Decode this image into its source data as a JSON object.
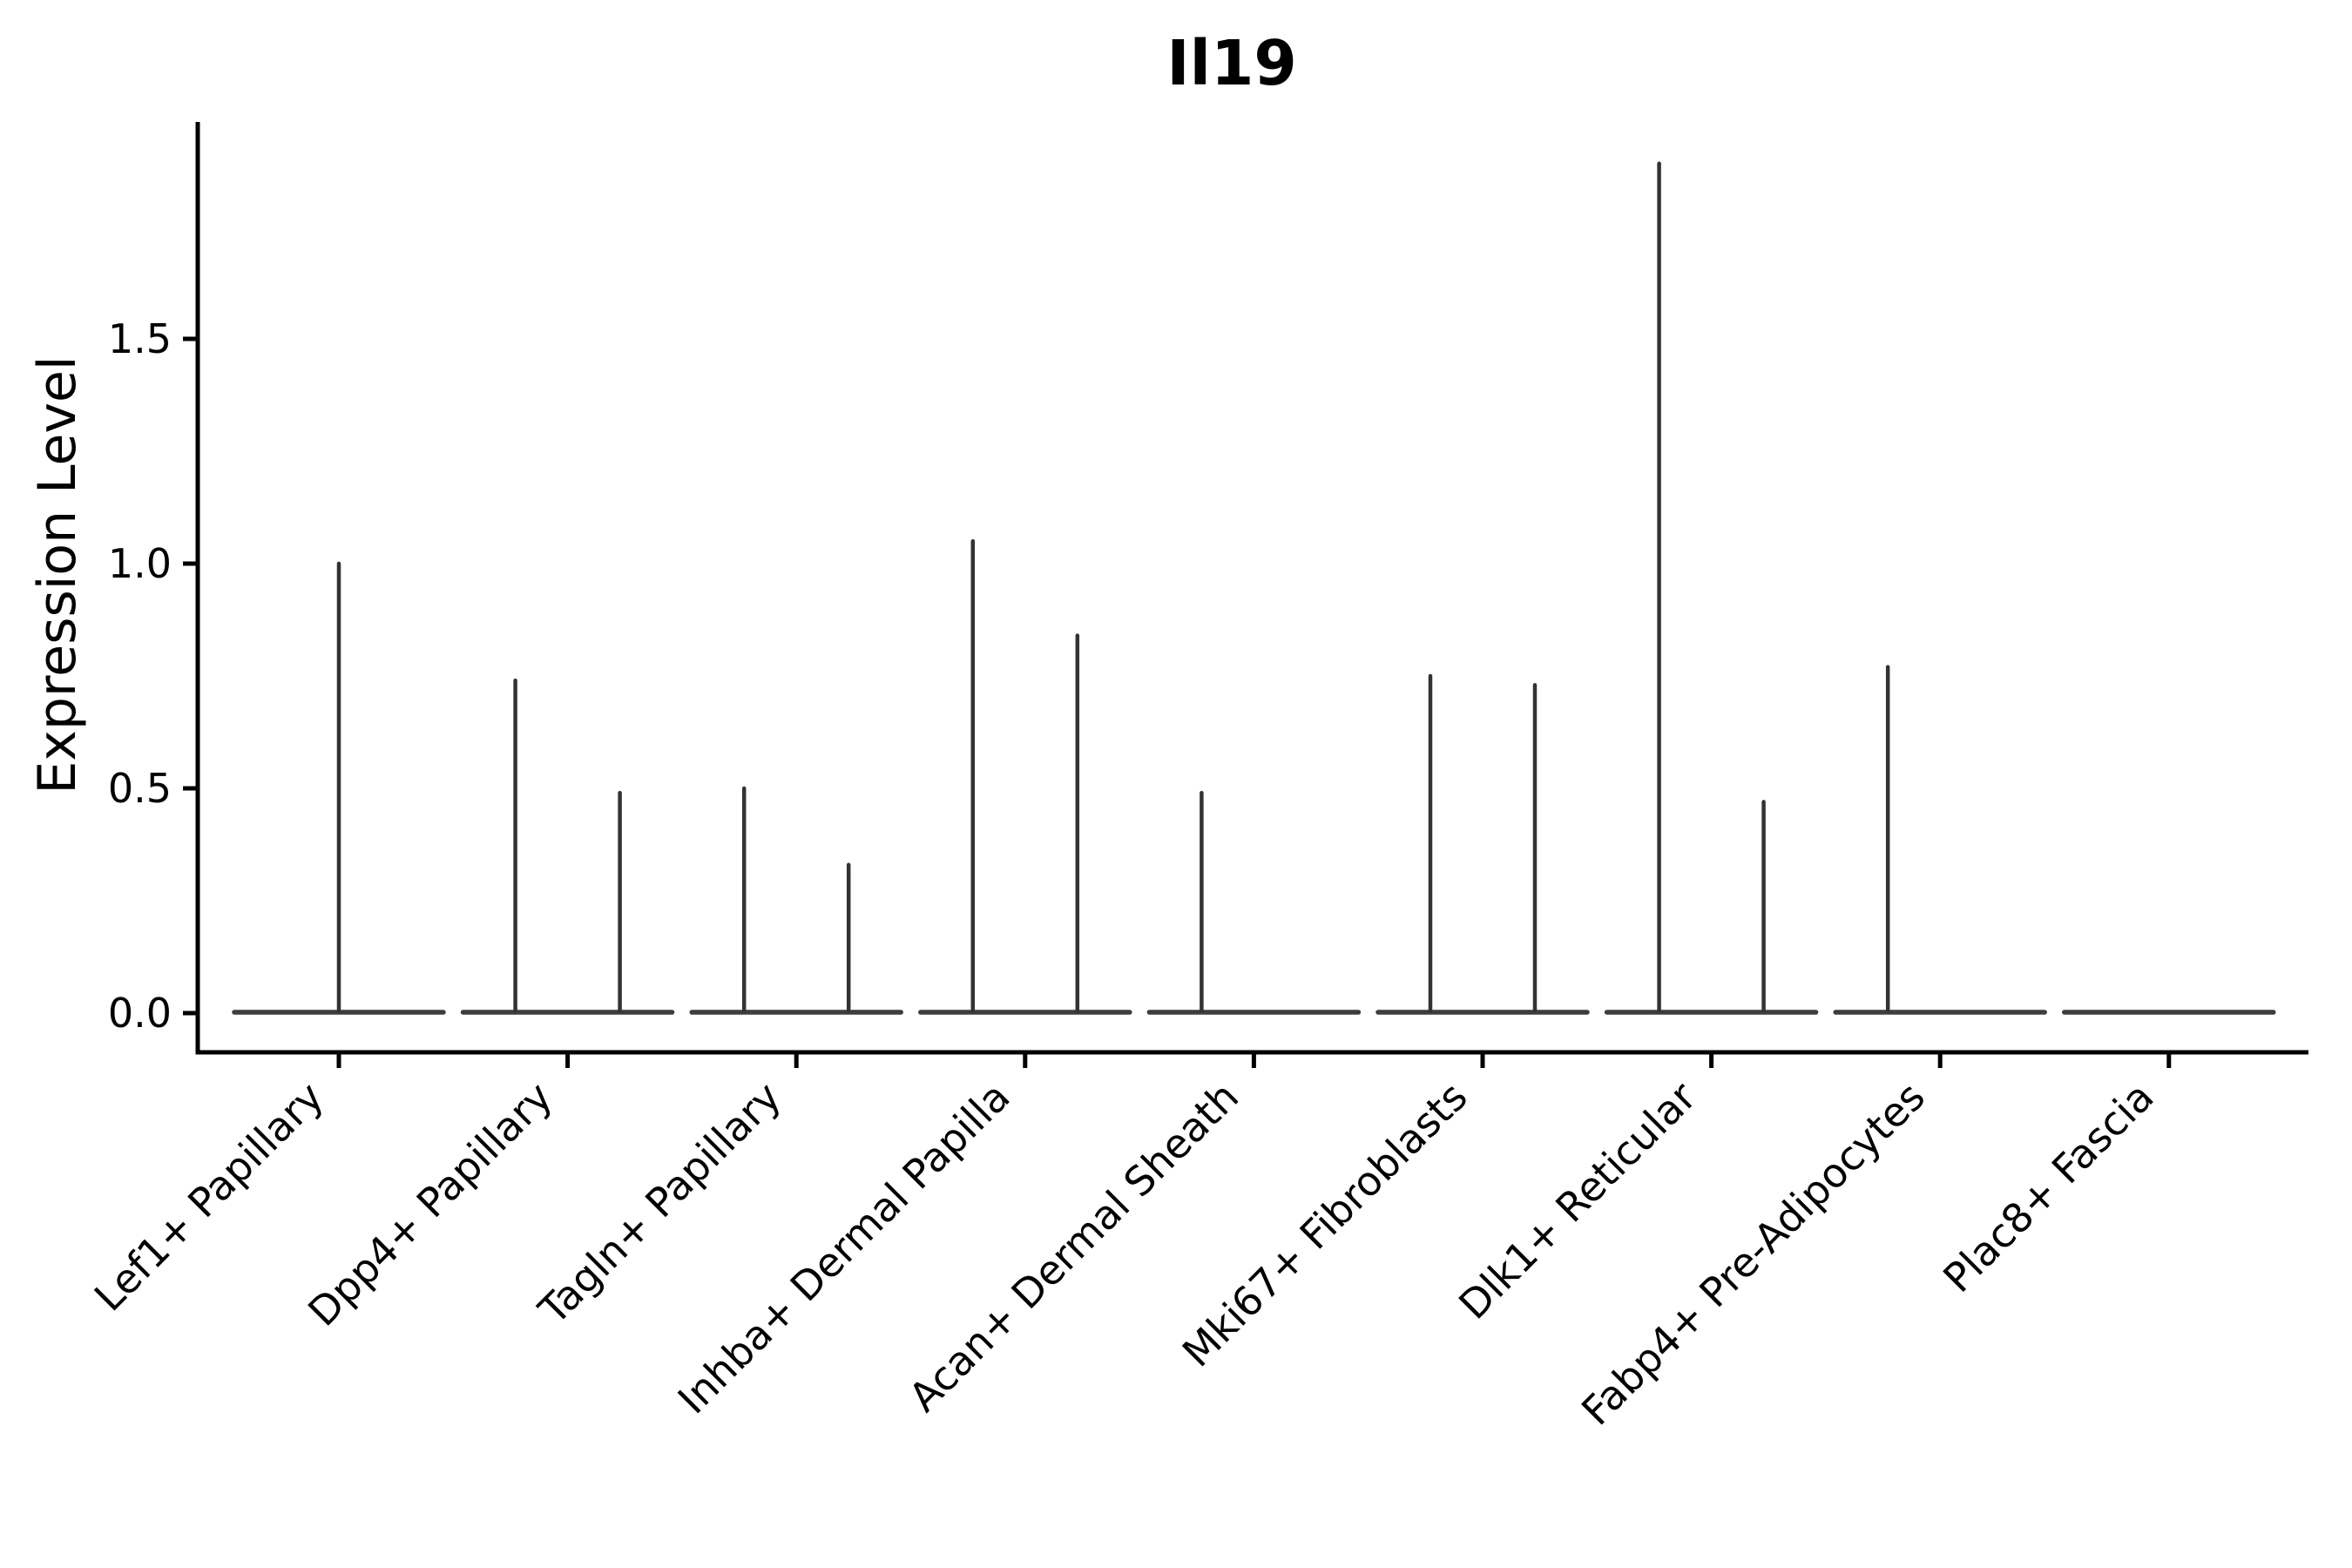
{
  "figure": {
    "background": "#ffffff"
  },
  "chart_data": {
    "type": "violin",
    "title": "Il19",
    "xlabel": "",
    "ylabel": "Expression Level",
    "ytick_labels": [
      "0.0",
      "0.5",
      "1.0",
      "1.5"
    ],
    "ytick_values": [
      0.0,
      0.5,
      1.0,
      1.5
    ],
    "ylim": [
      -0.08,
      1.97
    ],
    "grid": false,
    "legend": "none",
    "categories": [
      "Lef1+ Papillary",
      "Dpp4+ Papillary",
      "Tagln+ Papillary",
      "Inhba+ Dermal Papilla",
      "Acan+ Dermal Sheath",
      "Mki67+ Fibroblasts",
      "Dlk1+ Reticular",
      "Fabp4+ Pre-Adipocytes",
      "Plac8+ Fascia"
    ],
    "violins": [
      {
        "category": "Lef1+ Papillary",
        "spikes": [
          {
            "slot": "center",
            "peak": 1.0
          }
        ]
      },
      {
        "category": "Dpp4+ Papillary",
        "spikes": [
          {
            "slot": "left",
            "peak": 0.74
          },
          {
            "slot": "right",
            "peak": 0.49
          }
        ]
      },
      {
        "category": "Tagln+ Papillary",
        "spikes": [
          {
            "slot": "left",
            "peak": 0.5
          },
          {
            "slot": "right",
            "peak": 0.33
          }
        ]
      },
      {
        "category": "Inhba+ Dermal Papilla",
        "spikes": [
          {
            "slot": "left",
            "peak": 1.05
          },
          {
            "slot": "right",
            "peak": 0.84
          }
        ]
      },
      {
        "category": "Acan+ Dermal Sheath",
        "spikes": [
          {
            "slot": "left",
            "peak": 0.49
          }
        ]
      },
      {
        "category": "Mki67+ Fibroblasts",
        "spikes": [
          {
            "slot": "left",
            "peak": 0.75
          },
          {
            "slot": "right",
            "peak": 0.73
          }
        ]
      },
      {
        "category": "Dlk1+ Reticular",
        "spikes": [
          {
            "slot": "left",
            "peak": 1.89
          },
          {
            "slot": "right",
            "peak": 0.47
          }
        ]
      },
      {
        "category": "Fabp4+ Pre-Adipocytes",
        "spikes": [
          {
            "slot": "left",
            "peak": 0.77
          }
        ]
      },
      {
        "category": "Plac8+ Fascia",
        "spikes": []
      }
    ],
    "colors": {
      "violin_edge": "#333333",
      "violin_base": "#3d3d3d",
      "axis": "#000000",
      "text": "#000000",
      "background": "#ffffff"
    }
  }
}
